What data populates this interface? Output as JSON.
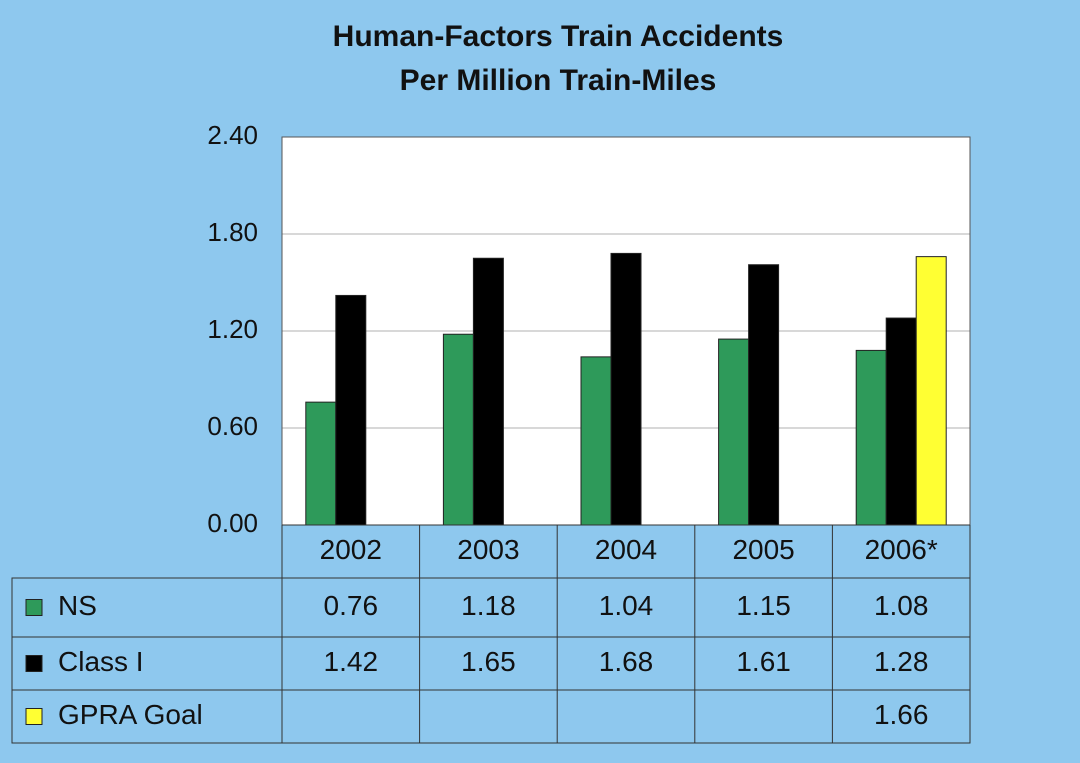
{
  "chart_data": {
    "type": "bar",
    "title": [
      "Human-Factors Train Accidents",
      "Per Million Train-Miles"
    ],
    "categories": [
      "2002",
      "2003",
      "2004",
      "2005",
      "2006*"
    ],
    "series": [
      {
        "name": "NS",
        "color": "#2e9a5a",
        "values": [
          0.76,
          1.18,
          1.04,
          1.15,
          1.08
        ]
      },
      {
        "name": "Class I",
        "color": "#000000",
        "values": [
          1.42,
          1.65,
          1.68,
          1.61,
          1.28
        ]
      },
      {
        "name": "GPRA Goal",
        "color": "#ffff33",
        "values": [
          null,
          null,
          null,
          null,
          1.66
        ]
      }
    ],
    "ylim": [
      0,
      2.4
    ],
    "yticks": [
      {
        "value": 0,
        "label": "0.00"
      },
      {
        "value": 0.6,
        "label": "0.60"
      },
      {
        "value": 1.2,
        "label": "1.20"
      },
      {
        "value": 1.8,
        "label": "1.80"
      },
      {
        "value": 2.4,
        "label": "2.40"
      }
    ],
    "grid": true
  }
}
